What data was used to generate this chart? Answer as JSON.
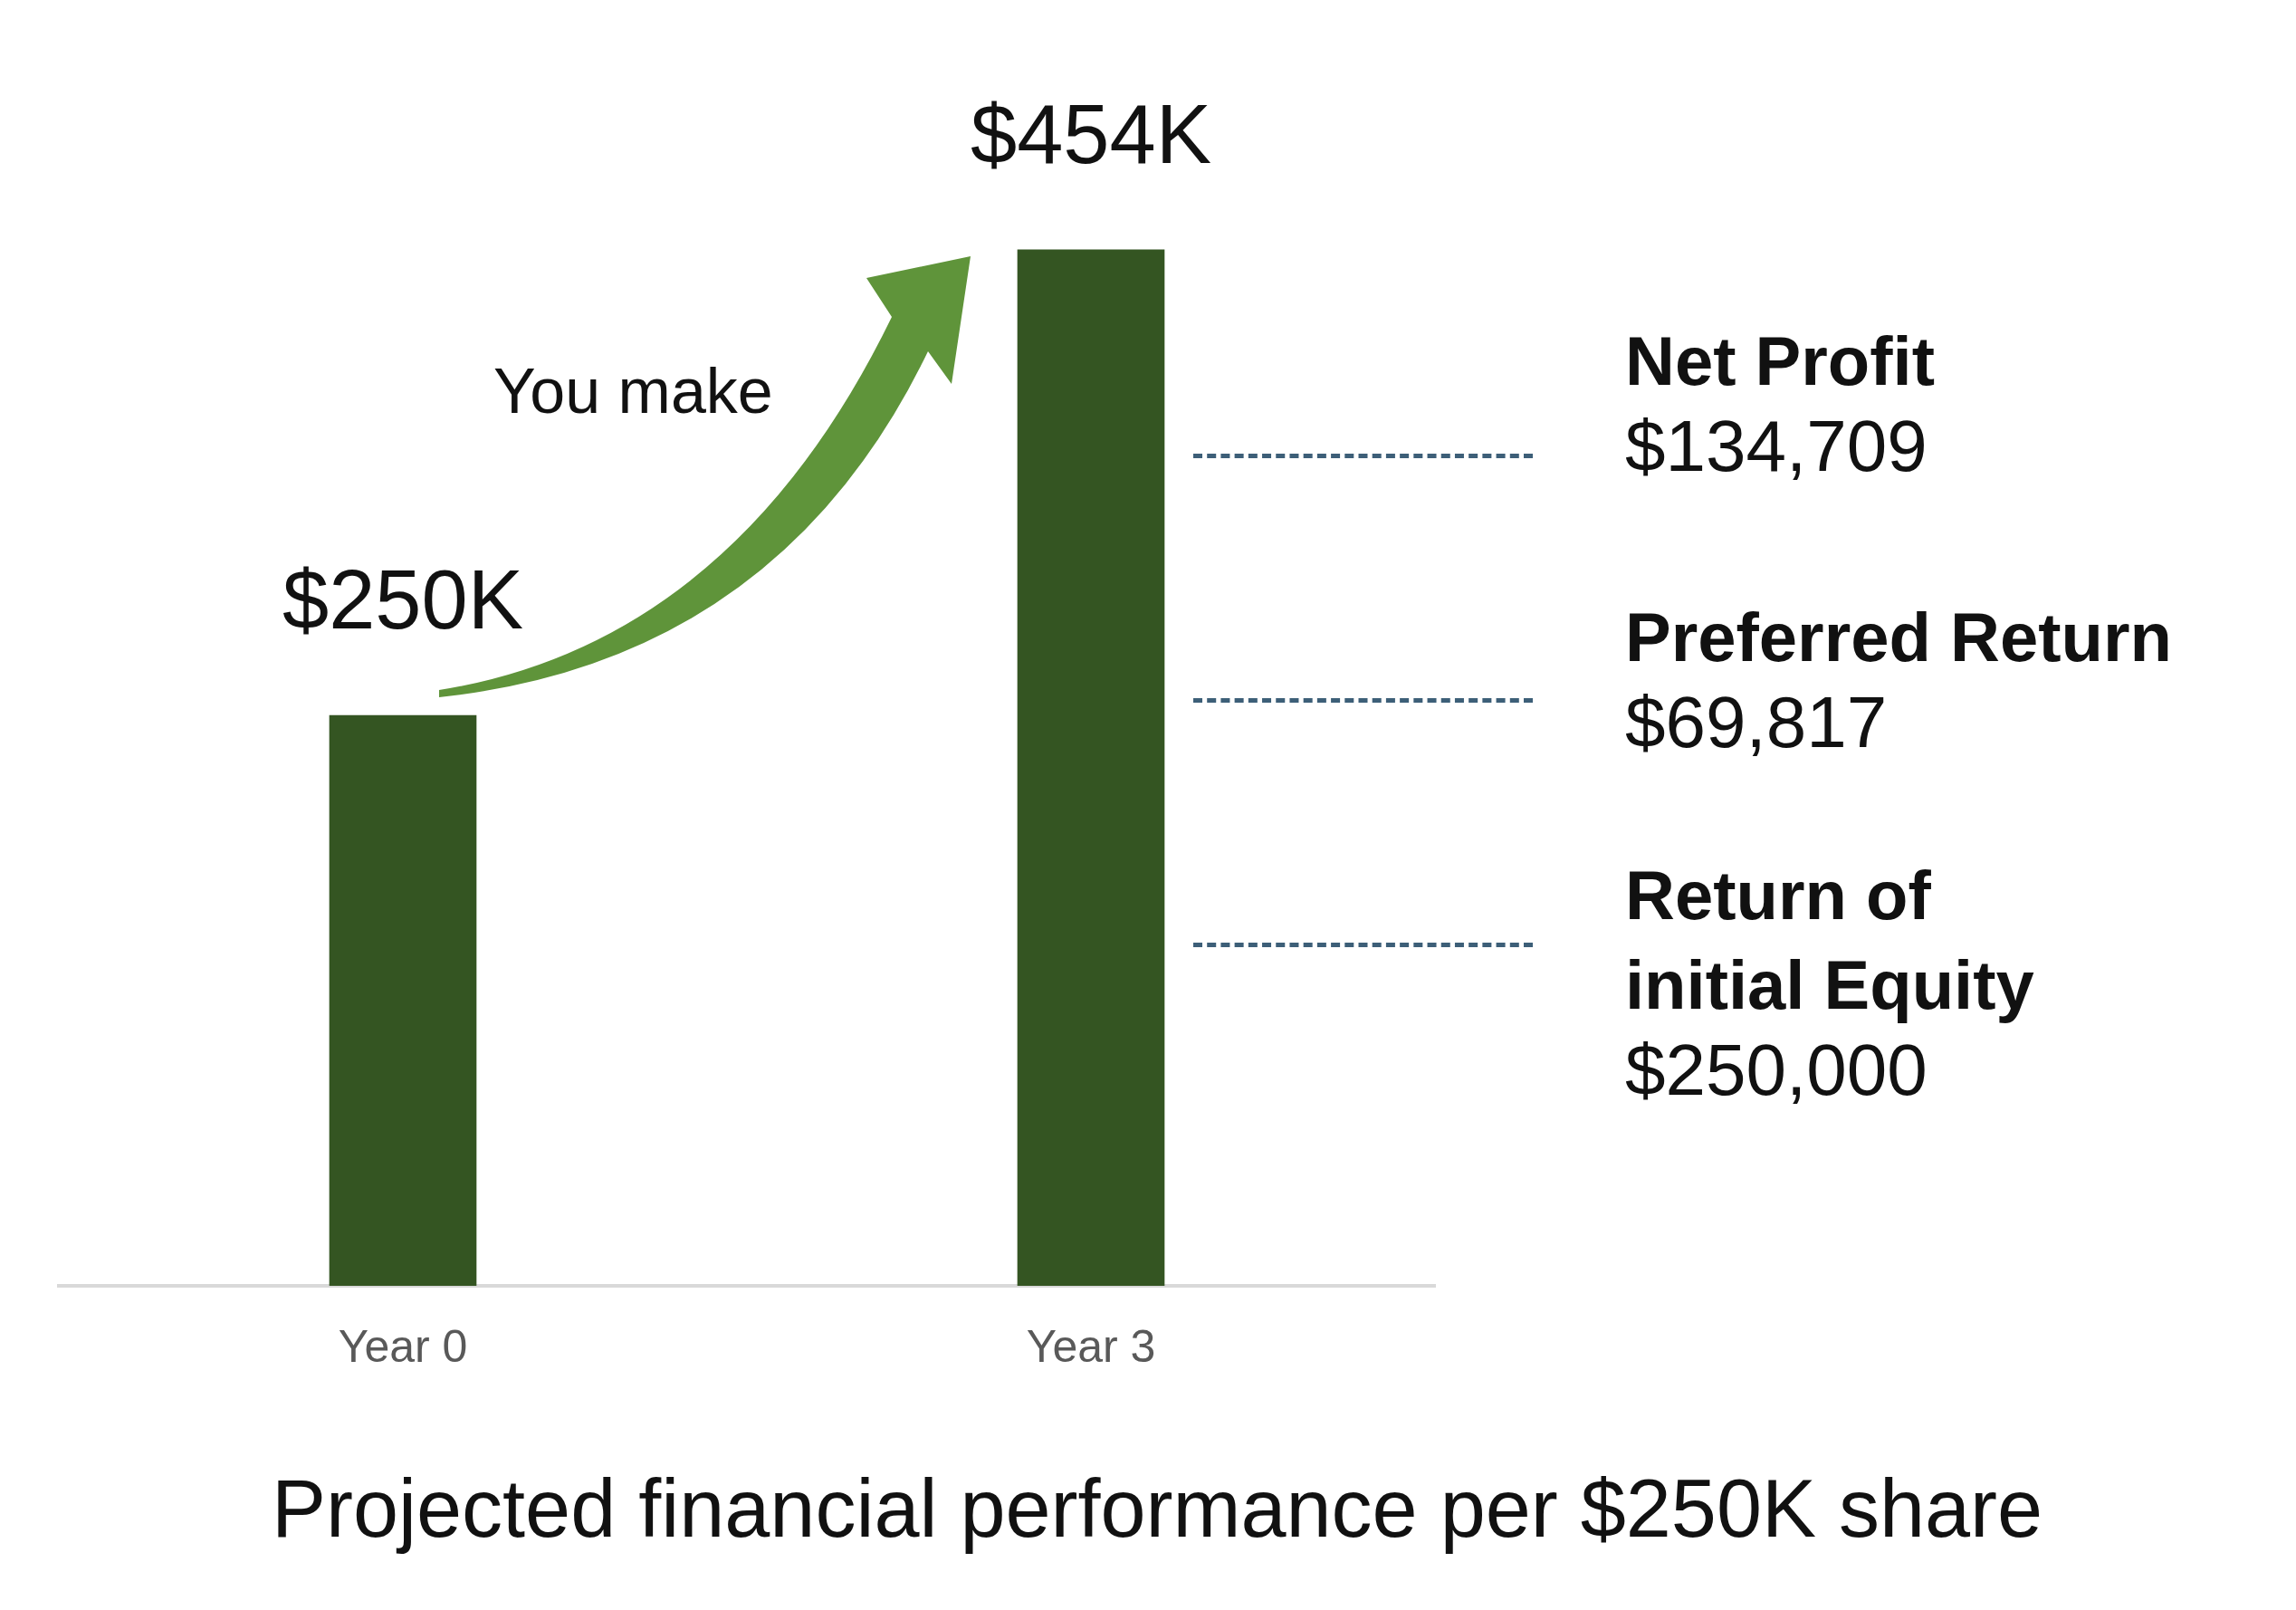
{
  "chart_data": {
    "type": "bar",
    "title": "Projected financial performance per $250K share",
    "categories": [
      "Year 0",
      "Year 3"
    ],
    "values": [
      250,
      454
    ],
    "value_labels": [
      "$250K",
      "$454K"
    ],
    "color": "#345522",
    "annotations": [
      "You make",
      "Net Profit",
      "$134,709",
      "Preferred Return",
      "$69,817",
      "Return of\ninitial Equity",
      "$250,000"
    ]
  }
}
